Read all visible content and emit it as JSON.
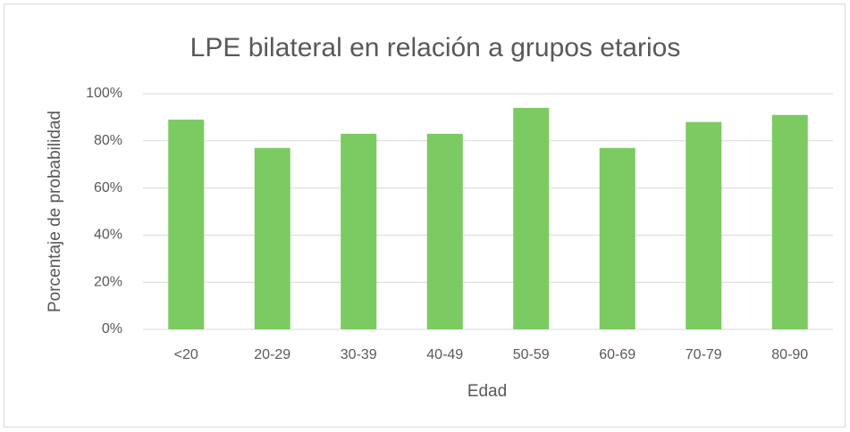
{
  "chart_data": {
    "type": "bar",
    "title": "LPE bilateral en relación a grupos etarios",
    "x_label": "Edad",
    "y_label": "Porcentaje de probabilidad",
    "categories": [
      "<20",
      "20-29",
      "30-39",
      "40-49",
      "50-59",
      "60-69",
      "70-79",
      "80-90"
    ],
    "values": [
      89,
      77,
      83,
      83,
      94,
      77,
      88,
      91
    ],
    "color": "#7cca62",
    "ylim": [
      0,
      100
    ],
    "yticks": [
      {
        "value": 0,
        "label": "0%"
      },
      {
        "value": 20,
        "label": "20%"
      },
      {
        "value": 40,
        "label": "40%"
      },
      {
        "value": 60,
        "label": "60%"
      },
      {
        "value": 80,
        "label": "80%"
      },
      {
        "value": 100,
        "label": "100%"
      }
    ],
    "grid": true
  }
}
